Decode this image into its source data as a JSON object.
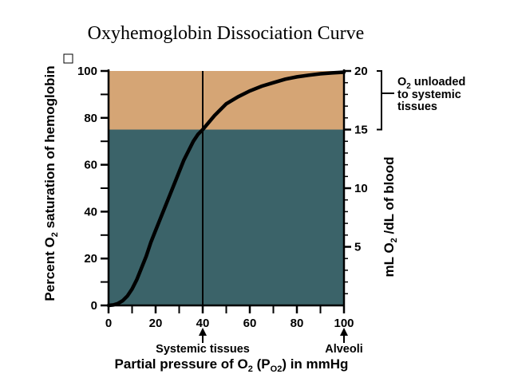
{
  "chart_data": {
    "type": "line",
    "title": "Oxyhemoglobin Dissociation Curve",
    "xlabel": "Partial pressure of O₂ (Pₒ₂) in mmHg",
    "xlabel_parts": {
      "pre": "Partial pressure of O",
      "sub1": "2",
      "mid": " (P",
      "sub2": "O2",
      "post": ") in mmHg"
    },
    "ylabel": "Percent O₂ saturation of hemoglobin",
    "ylabel_parts": {
      "pre": "Percent O",
      "sub": "2",
      "post": " saturation of hemoglobin"
    },
    "y2label": "mL O₂ /dL of blood",
    "y2label_parts": {
      "pre": "mL O",
      "sub": "2",
      "post": " /dL of blood"
    },
    "xlim": [
      0,
      100
    ],
    "ylim": [
      0,
      100
    ],
    "y2lim": [
      0,
      20
    ],
    "x_ticks": [
      0,
      20,
      40,
      60,
      80,
      100
    ],
    "y_ticks": [
      0,
      20,
      40,
      60,
      80,
      100
    ],
    "y2_ticks": [
      5,
      10,
      15,
      20
    ],
    "series": [
      {
        "x": [
          0,
          2,
          4,
          6,
          8,
          10,
          12,
          14,
          16,
          18,
          20,
          22,
          24,
          26,
          28,
          30,
          32,
          34,
          36,
          38,
          40,
          45,
          50,
          55,
          60,
          65,
          70,
          75,
          80,
          85,
          90,
          95,
          100
        ],
        "y": [
          0,
          0.2,
          0.8,
          2,
          4,
          7,
          11,
          16,
          21,
          27,
          32,
          37,
          42,
          47,
          52,
          57,
          62,
          66,
          70,
          73,
          75,
          81,
          86,
          89,
          91.5,
          93.5,
          95,
          96.5,
          97.5,
          98.2,
          98.8,
          99.2,
          99.5
        ]
      }
    ],
    "regions": [
      {
        "y_from": 75,
        "y_to": 100,
        "color": "#d5a575"
      },
      {
        "y_from": 0,
        "y_to": 75,
        "color": "#3b6369"
      }
    ],
    "vertical_line_x": 40,
    "annotations": {
      "systemic": "Systemic tissues",
      "systemic_x": 40,
      "alveoli": "Alveoli",
      "alveoli_x": 100,
      "o2_line1_sub": "2",
      "o2_line1_pre": "O",
      "o2_line1_post": " unloaded",
      "o2_line2": "to systemic",
      "o2_line3": "tissues"
    },
    "colors": {
      "curve": "#000000",
      "upper": "#d5a575",
      "lower": "#3b6369"
    }
  }
}
